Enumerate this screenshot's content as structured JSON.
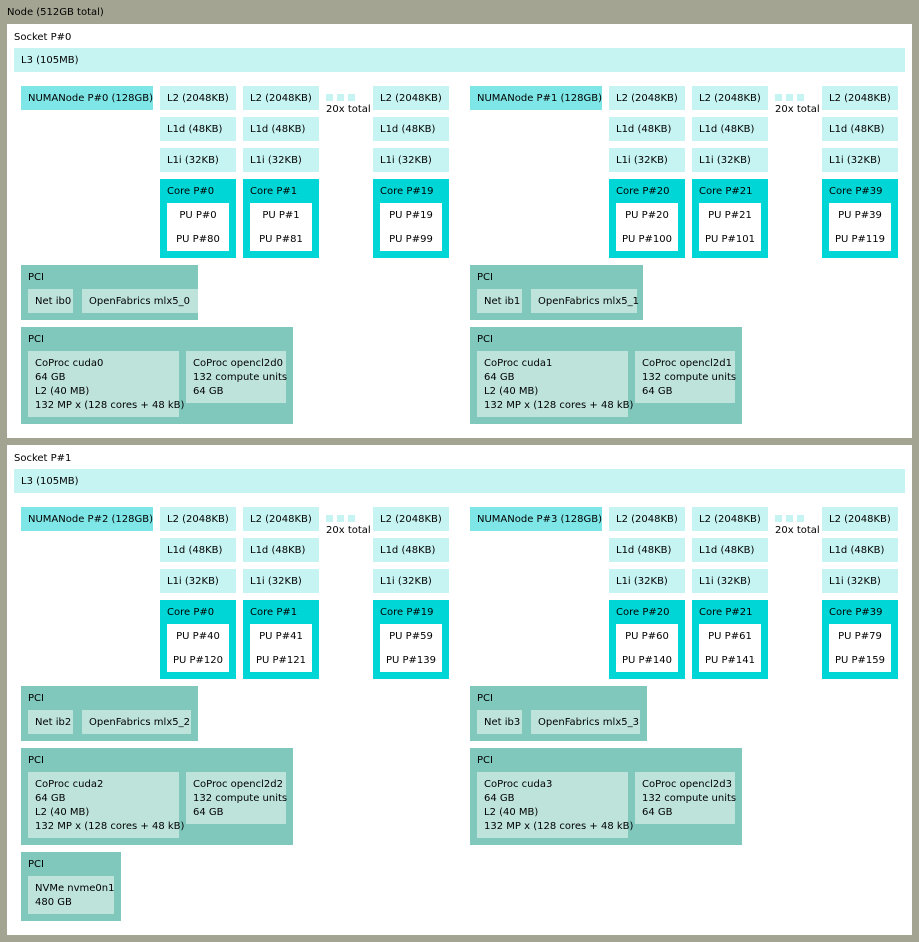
{
  "node": {
    "label": "Node (512GB total)"
  },
  "sockets": [
    {
      "label": "Socket P#0",
      "l3": "L3 (105MB)",
      "numa": [
        {
          "label": "NUMANode P#0 (128GB)",
          "total": "20x total",
          "cores": [
            {
              "l2": "L2 (2048KB)",
              "l1d": "L1d (48KB)",
              "l1i": "L1i (32KB)",
              "core": "Core P#0",
              "pu": [
                "PU P#0",
                "PU P#80"
              ]
            },
            {
              "l2": "L2 (2048KB)",
              "l1d": "L1d (48KB)",
              "l1i": "L1i (32KB)",
              "core": "Core P#1",
              "pu": [
                "PU P#1",
                "PU P#81"
              ]
            },
            {
              "l2": "L2 (2048KB)",
              "l1d": "L1d (48KB)",
              "l1i": "L1i (32KB)",
              "core": "Core P#19",
              "pu": [
                "PU P#19",
                "PU P#99"
              ]
            }
          ],
          "pci_net": {
            "label": "PCI",
            "net": "Net ib0",
            "of": "OpenFabrics mlx5_0"
          },
          "pci_gpu": {
            "label": "PCI",
            "cuda": [
              "CoProc cuda0",
              "64 GB",
              "L2 (40 MB)",
              "132 MP x (128 cores + 48 kB)"
            ],
            "opencl": [
              "CoProc opencl2d0",
              "132 compute units",
              "64 GB"
            ]
          }
        },
        {
          "label": "NUMANode P#1 (128GB)",
          "total": "20x total",
          "cores": [
            {
              "l2": "L2 (2048KB)",
              "l1d": "L1d (48KB)",
              "l1i": "L1i (32KB)",
              "core": "Core P#20",
              "pu": [
                "PU P#20",
                "PU P#100"
              ]
            },
            {
              "l2": "L2 (2048KB)",
              "l1d": "L1d (48KB)",
              "l1i": "L1i (32KB)",
              "core": "Core P#21",
              "pu": [
                "PU P#21",
                "PU P#101"
              ]
            },
            {
              "l2": "L2 (2048KB)",
              "l1d": "L1d (48KB)",
              "l1i": "L1i (32KB)",
              "core": "Core P#39",
              "pu": [
                "PU P#39",
                "PU P#119"
              ]
            }
          ],
          "pci_net": {
            "label": "PCI",
            "net": "Net ib1",
            "of": "OpenFabrics mlx5_1"
          },
          "pci_gpu": {
            "label": "PCI",
            "cuda": [
              "CoProc cuda1",
              "64 GB",
              "L2 (40 MB)",
              "132 MP x (128 cores + 48 kB)"
            ],
            "opencl": [
              "CoProc opencl2d1",
              "132 compute units",
              "64 GB"
            ]
          }
        }
      ]
    },
    {
      "label": "Socket P#1",
      "l3": "L3 (105MB)",
      "numa": [
        {
          "label": "NUMANode P#2 (128GB)",
          "total": "20x total",
          "cores": [
            {
              "l2": "L2 (2048KB)",
              "l1d": "L1d (48KB)",
              "l1i": "L1i (32KB)",
              "core": "Core P#0",
              "pu": [
                "PU P#40",
                "PU P#120"
              ]
            },
            {
              "l2": "L2 (2048KB)",
              "l1d": "L1d (48KB)",
              "l1i": "L1i (32KB)",
              "core": "Core P#1",
              "pu": [
                "PU P#41",
                "PU P#121"
              ]
            },
            {
              "l2": "L2 (2048KB)",
              "l1d": "L1d (48KB)",
              "l1i": "L1i (32KB)",
              "core": "Core P#19",
              "pu": [
                "PU P#59",
                "PU P#139"
              ]
            }
          ],
          "pci_net": {
            "label": "PCI",
            "net": "Net ib2",
            "of": "OpenFabrics mlx5_2"
          },
          "pci_gpu": {
            "label": "PCI",
            "cuda": [
              "CoProc cuda2",
              "64 GB",
              "L2 (40 MB)",
              "132 MP x (128 cores + 48 kB)"
            ],
            "opencl": [
              "CoProc opencl2d2",
              "132 compute units",
              "64 GB"
            ]
          },
          "pci_nvme": {
            "label": "PCI",
            "dev": [
              "NVMe nvme0n1",
              "480 GB"
            ]
          }
        },
        {
          "label": "NUMANode P#3 (128GB)",
          "total": "20x total",
          "cores": [
            {
              "l2": "L2 (2048KB)",
              "l1d": "L1d (48KB)",
              "l1i": "L1i (32KB)",
              "core": "Core P#20",
              "pu": [
                "PU P#60",
                "PU P#140"
              ]
            },
            {
              "l2": "L2 (2048KB)",
              "l1d": "L1d (48KB)",
              "l1i": "L1i (32KB)",
              "core": "Core P#21",
              "pu": [
                "PU P#61",
                "PU P#141"
              ]
            },
            {
              "l2": "L2 (2048KB)",
              "l1d": "L1d (48KB)",
              "l1i": "L1i (32KB)",
              "core": "Core P#39",
              "pu": [
                "PU P#79",
                "PU P#159"
              ]
            }
          ],
          "pci_net": {
            "label": "PCI",
            "net": "Net ib3",
            "of": "OpenFabrics mlx5_3"
          },
          "pci_gpu": {
            "label": "PCI",
            "cuda": [
              "CoProc cuda3",
              "64 GB",
              "L2 (40 MB)",
              "132 MP x (128 cores + 48 kB)"
            ],
            "opencl": [
              "CoProc opencl2d3",
              "132 compute units",
              "64 GB"
            ]
          }
        }
      ]
    }
  ]
}
